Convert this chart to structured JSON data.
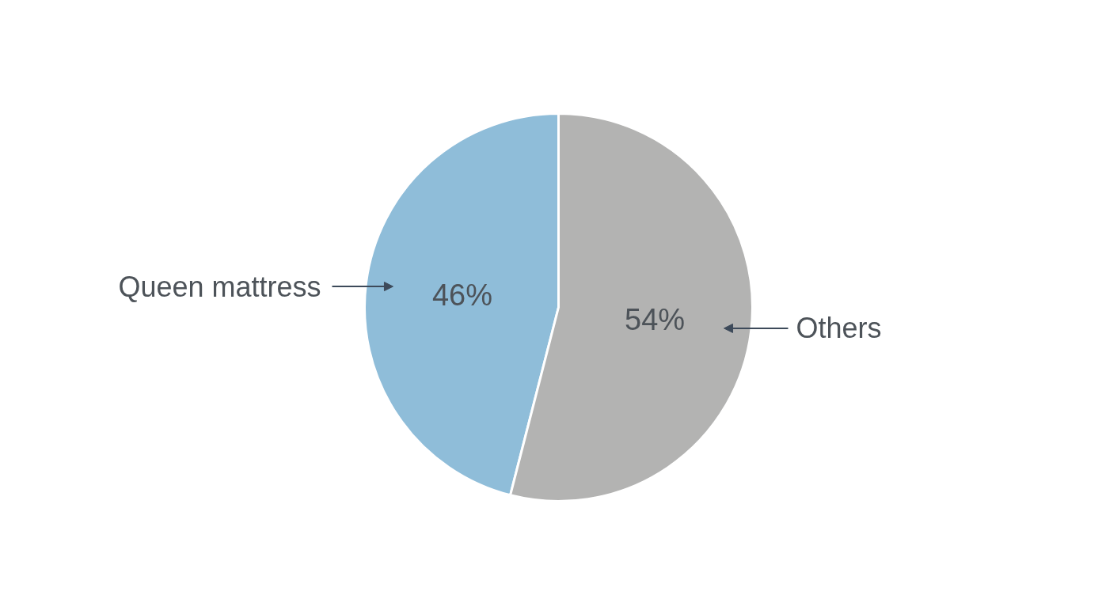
{
  "chart_data": {
    "type": "pie",
    "categories": [
      "Queen mattress",
      "Others"
    ],
    "values": [
      46,
      54
    ],
    "colors": [
      "#8fbdd9",
      "#b3b3b2"
    ],
    "value_labels": [
      "46%",
      "54%"
    ]
  }
}
